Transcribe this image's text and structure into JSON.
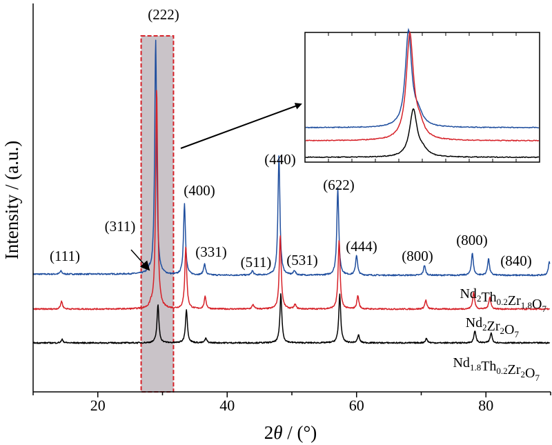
{
  "chart_data": {
    "type": "line",
    "title": "",
    "xlabel": "2θ / (°)",
    "xlabel_var": "θ",
    "xlabel_prefix": "2",
    "xlabel_suffix": " / (°)",
    "ylabel": "Intensity / (a.u.)",
    "xlim": [
      10,
      90
    ],
    "x_ticks": [
      20,
      40,
      60,
      80
    ],
    "y_ticks_labeled": false,
    "grid": false,
    "peaks": [
      {
        "pos": 14.5,
        "hkl": "(111)"
      },
      {
        "pos": 28.0,
        "hkl": "(311)"
      },
      {
        "pos": 28.9,
        "hkl": "(222)"
      },
      {
        "pos": 33.5,
        "hkl": "(400)"
      },
      {
        "pos": 36.6,
        "hkl": "(331)"
      },
      {
        "pos": 44.0,
        "hkl": "(511)"
      },
      {
        "pos": 48.0,
        "hkl": "(440)"
      },
      {
        "pos": 50.3,
        "hkl": "(531)"
      },
      {
        "pos": 57.0,
        "hkl": "(622)"
      },
      {
        "pos": 60.0,
        "hkl": "(444)"
      },
      {
        "pos": 70.5,
        "hkl": "(800)"
      },
      {
        "pos": 78.0,
        "hkl": "(800)"
      },
      {
        "pos": 80.5,
        "hkl": "(840)"
      }
    ],
    "series": [
      {
        "name": "Nd2Th0.2Zr1.8O7",
        "label_parts": [
          [
            "Nd",
            ""
          ],
          [
            "2",
            "sub"
          ],
          [
            "Th",
            ""
          ],
          [
            "0.2",
            "sub"
          ],
          [
            "Zr",
            ""
          ],
          [
            "1.8",
            "sub"
          ],
          [
            "O",
            ""
          ],
          [
            "7",
            "sub"
          ]
        ],
        "color": "#1f4e9e",
        "baseline": 1.9,
        "peaks": [
          {
            "x": 14.3,
            "h": 0.14
          },
          {
            "x": 28.0,
            "h": 0.1
          },
          {
            "x": 28.95,
            "h": 10.6
          },
          {
            "x": 33.4,
            "h": 3.2
          },
          {
            "x": 36.5,
            "h": 0.5
          },
          {
            "x": 43.9,
            "h": 0.2
          },
          {
            "x": 48.0,
            "h": 5.4
          },
          {
            "x": 50.4,
            "h": 0.2
          },
          {
            "x": 57.1,
            "h": 3.9
          },
          {
            "x": 60.0,
            "h": 0.9
          },
          {
            "x": 70.5,
            "h": 0.45
          },
          {
            "x": 77.9,
            "h": 1.0
          },
          {
            "x": 80.4,
            "h": 0.75
          },
          {
            "x": 89.8,
            "h": 0.6
          }
        ]
      },
      {
        "name": "Nd2Zr2O7",
        "label_parts": [
          [
            "Nd",
            ""
          ],
          [
            "2",
            "sub"
          ],
          [
            "Zr",
            ""
          ],
          [
            "2",
            "sub"
          ],
          [
            "O",
            ""
          ],
          [
            "7",
            "sub"
          ]
        ],
        "color": "#d62027",
        "baseline": 1.0,
        "peaks": [
          {
            "x": 14.4,
            "h": 0.35
          },
          {
            "x": 28.2,
            "h": 0.15
          },
          {
            "x": 29.1,
            "h": 9.9
          },
          {
            "x": 33.6,
            "h": 2.8
          },
          {
            "x": 36.6,
            "h": 0.55
          },
          {
            "x": 44.0,
            "h": 0.2
          },
          {
            "x": 48.2,
            "h": 3.3
          },
          {
            "x": 50.5,
            "h": 0.2
          },
          {
            "x": 57.3,
            "h": 3.1
          },
          {
            "x": 60.2,
            "h": 0.6
          },
          {
            "x": 70.7,
            "h": 0.4
          },
          {
            "x": 78.1,
            "h": 0.75
          },
          {
            "x": 80.6,
            "h": 0.55
          }
        ]
      },
      {
        "name": "Nd1.8Th0.2Zr2O7",
        "label_parts": [
          [
            "Nd",
            ""
          ],
          [
            "1.8",
            "sub"
          ],
          [
            "Th",
            ""
          ],
          [
            "0.2",
            "sub"
          ],
          [
            "Zr",
            ""
          ],
          [
            "2",
            "sub"
          ],
          [
            "O",
            ""
          ],
          [
            "7",
            "sub"
          ]
        ],
        "color": "#000000",
        "baseline": 0.0,
        "peaks": [
          {
            "x": 14.5,
            "h": 0.15
          },
          {
            "x": 29.3,
            "h": 1.7
          },
          {
            "x": 33.7,
            "h": 1.5
          },
          {
            "x": 36.7,
            "h": 0.2
          },
          {
            "x": 48.3,
            "h": 2.2
          },
          {
            "x": 57.4,
            "h": 2.2
          },
          {
            "x": 60.3,
            "h": 0.35
          },
          {
            "x": 70.8,
            "h": 0.2
          },
          {
            "x": 78.3,
            "h": 0.55
          },
          {
            "x": 80.8,
            "h": 0.45
          }
        ]
      }
    ],
    "highlight_region": {
      "x": [
        26.7,
        31.7
      ],
      "fill": "#c9c3c8",
      "stroke": "#d62027"
    },
    "inset": {
      "description": "zoom of the (222) reflection",
      "xlim": [
        26.7,
        31.7
      ]
    }
  }
}
